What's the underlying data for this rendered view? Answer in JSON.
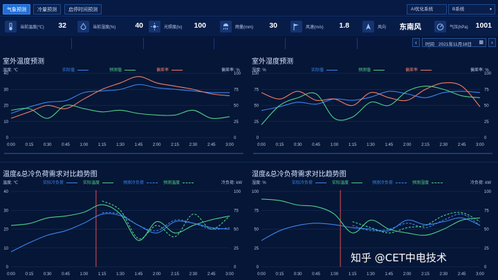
{
  "tabs": [
    {
      "label": "气象预测",
      "active": true
    },
    {
      "label": "冷量预测",
      "active": false
    },
    {
      "label": "启停时间预测",
      "active": false
    }
  ],
  "system_select": {
    "label": "AI优化系统",
    "value": "B系统"
  },
  "metrics": [
    {
      "icon": "thermometer-icon",
      "label": "当前温度(℃)",
      "value": "32"
    },
    {
      "icon": "humidity-icon",
      "label": "当前湿度(%)",
      "value": "40"
    },
    {
      "icon": "sun-icon",
      "label": "光照度(lx)",
      "value": "100"
    },
    {
      "icon": "rain-icon",
      "label": "雨量(mm)",
      "value": "30"
    },
    {
      "icon": "wind-speed-icon",
      "label": "风速(m/s)",
      "value": "1.8"
    },
    {
      "icon": "wind-direction-icon",
      "label": "风向",
      "value": "东南风"
    },
    {
      "icon": "pressure-icon",
      "label": "气压(hPa)",
      "value": "1001"
    }
  ],
  "date_picker": {
    "label": "时间",
    "value": "2021年11月18日"
  },
  "colors": {
    "actual": "#3a86f0",
    "predicted": "#4fd08a",
    "deviation": "#f0806a",
    "cutline": "#e05050"
  },
  "chart_data": [
    {
      "type": "line",
      "title": "室外温度预测",
      "ylabel_left": "温度: ℃",
      "ylabel_right": "偏差率: %",
      "x": [
        "0:00",
        "0:15",
        "0:30",
        "0:45",
        "1:00",
        "1:15",
        "1:30",
        "1:45",
        "2:00",
        "2:15",
        "2:30",
        "2:45",
        "3:00"
      ],
      "ylim_left": [
        0,
        40
      ],
      "yticks_left": [
        0,
        10,
        20,
        30,
        40
      ],
      "ylim_right": [
        0,
        100
      ],
      "yticks_right": [
        0,
        25,
        50,
        75,
        100
      ],
      "series": [
        {
          "name": "实际值",
          "axis": "left",
          "color": "#3a86f0",
          "dash": false,
          "values": [
            15,
            19,
            22,
            23,
            28,
            29,
            30,
            33,
            31,
            30,
            29,
            28,
            28
          ]
        },
        {
          "name": "预测值",
          "axis": "left",
          "color": "#4fd08a",
          "dash": false,
          "values": [
            17,
            18,
            12,
            20,
            18,
            16,
            17,
            15,
            14,
            14,
            17,
            12,
            13
          ]
        },
        {
          "name": "偏差率",
          "axis": "right",
          "color": "#f0806a",
          "dash": false,
          "values": [
            30,
            40,
            50,
            45,
            60,
            75,
            85,
            95,
            85,
            80,
            75,
            68,
            65
          ]
        }
      ]
    },
    {
      "type": "line",
      "title": "室外湿度预测",
      "ylabel_left": "湿度: %",
      "ylabel_right": "偏差率: %",
      "x": [
        "0:00",
        "0:15",
        "0:30",
        "0:45",
        "1:00",
        "1:15",
        "1:30",
        "1:45",
        "2:00",
        "2:15",
        "2:30",
        "2:45",
        "3:00"
      ],
      "ylim_left": [
        0,
        100
      ],
      "yticks_left": [
        0,
        25,
        50,
        75,
        100
      ],
      "ylim_right": [
        0,
        100
      ],
      "yticks_right": [
        0,
        25,
        50,
        75,
        100
      ],
      "series": [
        {
          "name": "实际值",
          "axis": "left",
          "color": "#3a86f0",
          "dash": false,
          "values": [
            42,
            48,
            55,
            52,
            60,
            58,
            63,
            72,
            68,
            62,
            70,
            72,
            70
          ]
        },
        {
          "name": "预测值",
          "axis": "left",
          "color": "#4fd08a",
          "dash": false,
          "values": [
            20,
            50,
            62,
            68,
            30,
            32,
            55,
            50,
            72,
            80,
            75,
            65,
            62
          ]
        },
        {
          "name": "偏差率",
          "axis": "right",
          "color": "#f0806a",
          "dash": false,
          "values": [
            70,
            60,
            72,
            58,
            60,
            50,
            70,
            62,
            58,
            75,
            85,
            80,
            48
          ]
        }
      ]
    },
    {
      "type": "line",
      "title": "温度&总冷负荷需求对比趋势图",
      "ylabel_left": "温度: ℃",
      "ylabel_right": "冷负荷: kW",
      "x": [
        "0:00",
        "0:15",
        "0:30",
        "0:45",
        "1:00",
        "1:15",
        "1:30",
        "1:45",
        "2:00",
        "2:15",
        "2:30",
        "2:45",
        "3:00"
      ],
      "ylim_left": [
        0,
        40
      ],
      "yticks_left": [
        0,
        10,
        20,
        30,
        40
      ],
      "ylim_right": [
        0,
        100
      ],
      "yticks_right": [
        0,
        25,
        50,
        75,
        100
      ],
      "cutoff_x": "1:10",
      "series": [
        {
          "name": "实际冷负荷",
          "axis": "right",
          "color": "#3a86f0",
          "dash": false,
          "values": [
            20,
            32,
            42,
            48,
            58,
            70,
            68,
            55,
            45,
            60,
            58,
            52,
            50
          ]
        },
        {
          "name": "实际温度",
          "axis": "left",
          "color": "#4fd08a",
          "dash": false,
          "values": [
            22,
            23,
            26,
            27,
            29,
            33,
            28,
            14,
            24,
            18,
            22,
            25,
            27
          ]
        },
        {
          "name": "预测冷负荷",
          "axis": "right",
          "color": "#3a86f0",
          "dash": true,
          "values": [
            null,
            null,
            null,
            null,
            null,
            72,
            70,
            55,
            48,
            62,
            58,
            50,
            52
          ]
        },
        {
          "name": "预测温度",
          "axis": "left",
          "color": "#4fd08a",
          "dash": true,
          "values": [
            null,
            null,
            null,
            null,
            null,
            35,
            30,
            15,
            22,
            16,
            28,
            20,
            27
          ]
        }
      ]
    },
    {
      "type": "line",
      "title": "湿度&总冷负荷需求对比趋势图",
      "ylabel_left": "湿度: %",
      "ylabel_right": "冷负荷: kW",
      "x": [
        "0:00",
        "0:15",
        "0:30",
        "0:45",
        "1:00",
        "1:15",
        "1:30",
        "1:45",
        "2:00",
        "2:15",
        "2:30",
        "2:45",
        "3:00"
      ],
      "ylim_left": [
        0,
        100
      ],
      "yticks_left": [
        0,
        25,
        50,
        75,
        100
      ],
      "ylim_right": [
        0,
        100
      ],
      "yticks_right": [
        0,
        25,
        50,
        75,
        100
      ],
      "cutoff_x": "1:05",
      "series": [
        {
          "name": "实际冷负荷",
          "axis": "right",
          "color": "#3a86f0",
          "dash": false,
          "values": [
            35,
            48,
            55,
            58,
            56,
            52,
            50,
            48,
            62,
            56,
            60,
            65,
            55
          ]
        },
        {
          "name": "实际温度",
          "axis": "left",
          "color": "#4fd08a",
          "dash": false,
          "values": [
            90,
            88,
            82,
            80,
            70,
            45,
            62,
            50,
            45,
            42,
            50,
            62,
            65
          ]
        },
        {
          "name": "预测冷负荷",
          "axis": "right",
          "color": "#3a86f0",
          "dash": true,
          "values": [
            null,
            null,
            null,
            null,
            null,
            55,
            48,
            50,
            58,
            52,
            62,
            70,
            55
          ]
        },
        {
          "name": "预测湿度",
          "axis": "left",
          "color": "#4fd08a",
          "dash": true,
          "values": [
            null,
            null,
            null,
            null,
            null,
            60,
            52,
            45,
            52,
            55,
            68,
            72,
            60
          ]
        }
      ]
    }
  ],
  "watermark": "知乎 @CET中电技术"
}
